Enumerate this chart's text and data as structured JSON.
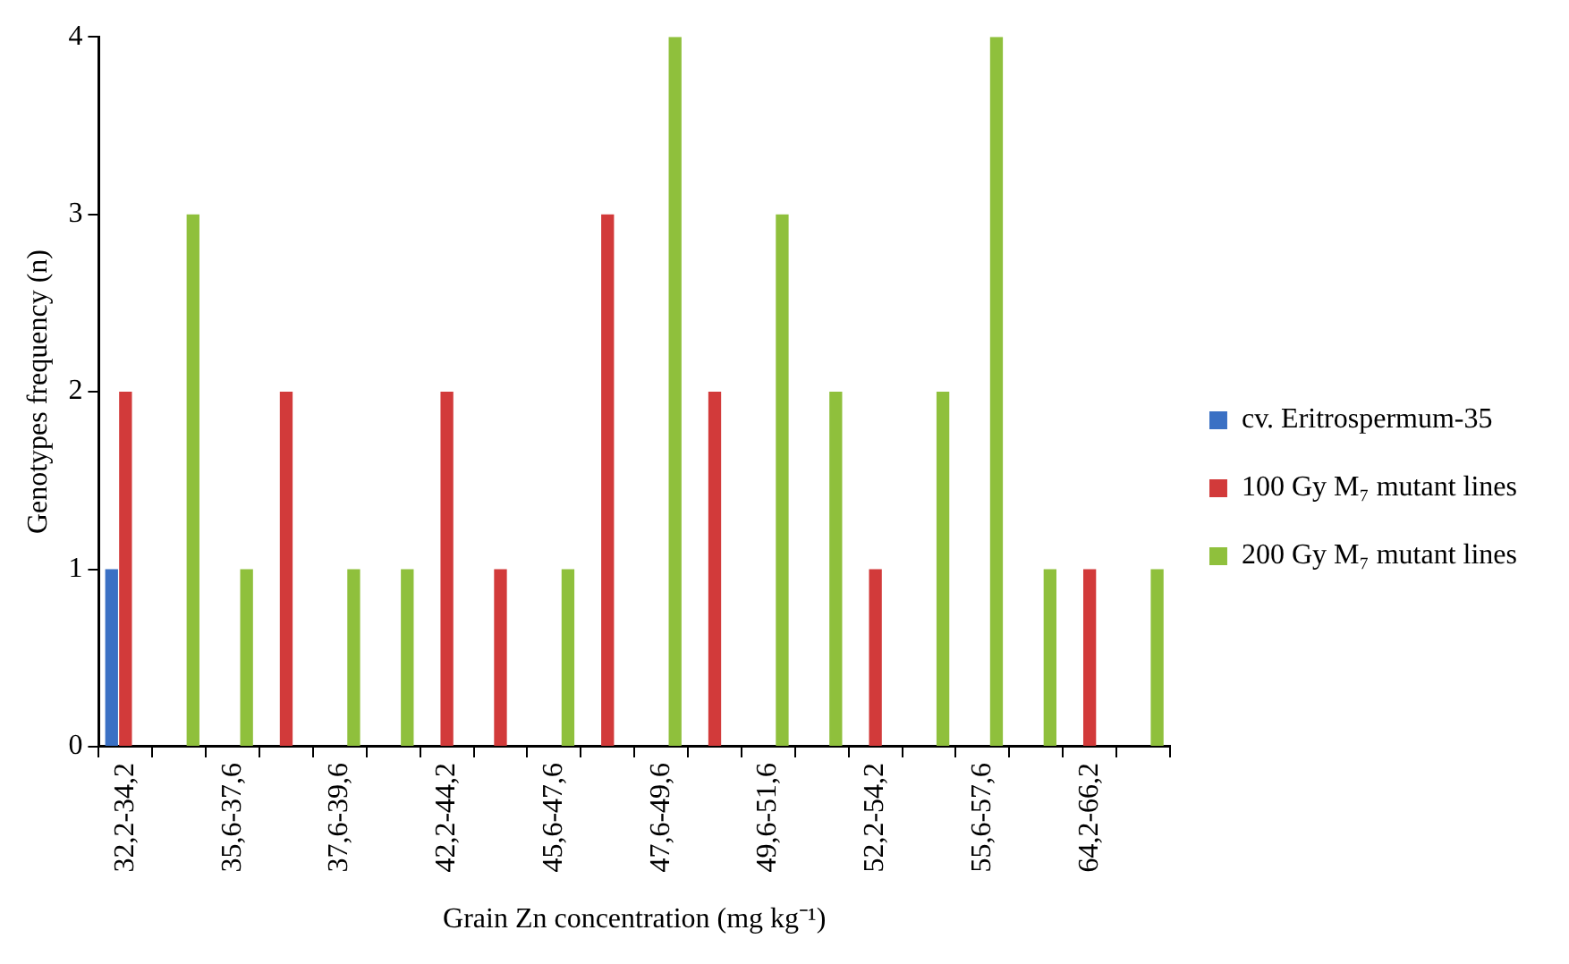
{
  "chart_data": {
    "type": "bar",
    "xlabel": "Grain Zn concentration (mg kg⁻¹)",
    "ylabel": "Genotypes frequency (n)",
    "categories": [
      "32,2-34,2",
      null,
      "35,6-37,6",
      null,
      "37,6-39,6",
      null,
      "42,2-44,2",
      null,
      "45,6-47,6",
      null,
      "47,6-49,6",
      null,
      "49,6-51,6",
      null,
      "52,2-54,2",
      null,
      "55,6-57,6",
      null,
      "64,2-66,2",
      null
    ],
    "series": [
      {
        "name": "cv. Eritrospermum-35",
        "color": "#3a70c4",
        "values": [
          1,
          0,
          0,
          0,
          0,
          0,
          0,
          0,
          0,
          0,
          0,
          0,
          0,
          0,
          0,
          0,
          0,
          0,
          0,
          0
        ]
      },
      {
        "name": "100 Gy M₇ mutant lines",
        "color": "#d23a3a",
        "values": [
          2,
          0,
          0,
          2,
          0,
          0,
          2,
          1,
          0,
          3,
          0,
          2,
          0,
          0,
          1,
          0,
          0,
          0,
          1,
          0
        ]
      },
      {
        "name": "200 Gy M₇ mutant lines",
        "color": "#8fc03c",
        "values": [
          0,
          3,
          1,
          0,
          1,
          1,
          0,
          0,
          1,
          0,
          4,
          0,
          3,
          2,
          0,
          2,
          4,
          1,
          0,
          1
        ]
      }
    ],
    "ylim": [
      0,
      4
    ],
    "yticks": [
      0,
      1,
      2,
      3,
      4
    ],
    "grid": false,
    "legend": "right"
  }
}
